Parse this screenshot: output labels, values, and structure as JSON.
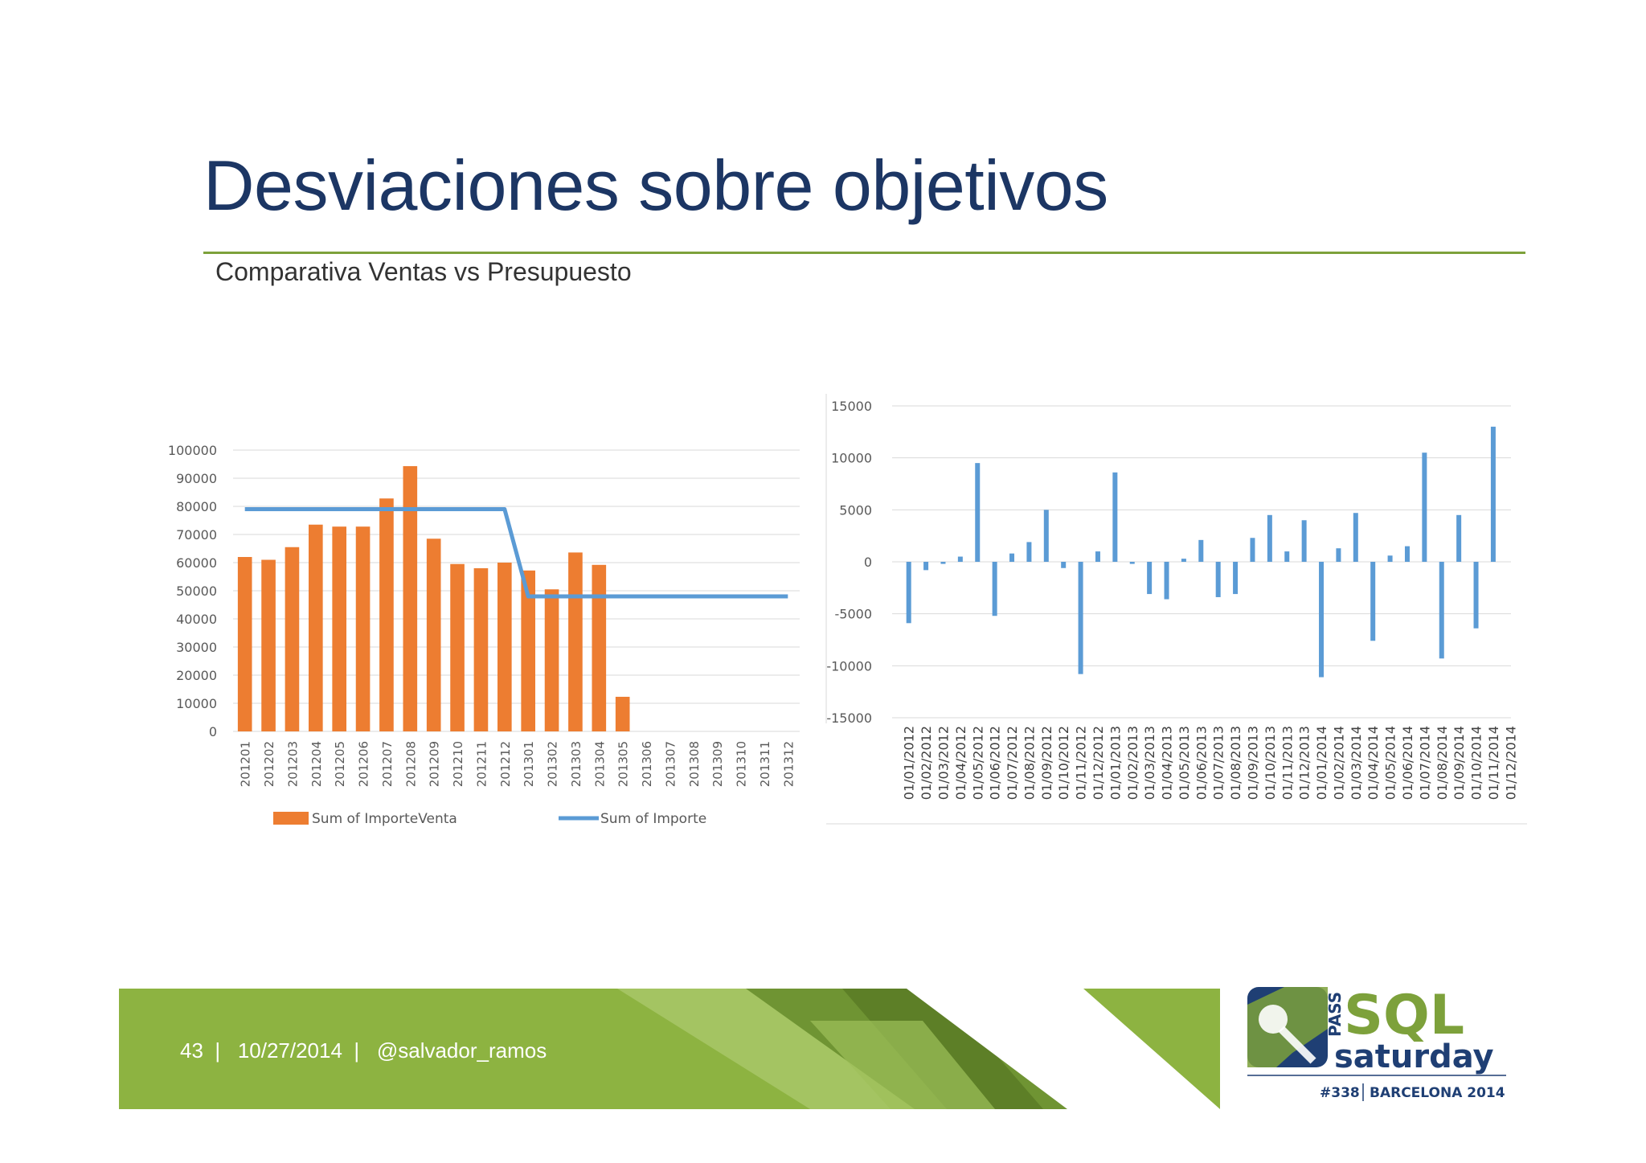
{
  "slide": {
    "title": "Desviaciones sobre objetivos",
    "subtitle": "Comparativa Ventas vs Presupuesto",
    "footer": {
      "page": "43",
      "date": "10/27/2014",
      "handle": "@salvador_ramos",
      "separator": "|"
    },
    "logo": {
      "pass": "PASS",
      "sql": "SQL",
      "saturday": "saturday",
      "event_number": "#338",
      "event_place": "BARCELONA 2014"
    },
    "colors": {
      "title": "#1c3664",
      "rule": "#7da13b",
      "footer_green": "#8db341",
      "bar_orange": "#ed7d31",
      "line_blue": "#5b9bd5"
    }
  },
  "chart_data": [
    {
      "type": "bar",
      "categories": [
        "201201",
        "201202",
        "201203",
        "201204",
        "201205",
        "201206",
        "201207",
        "201208",
        "201209",
        "201210",
        "201211",
        "201212",
        "201301",
        "201302",
        "201303",
        "201304",
        "201305",
        "201306",
        "201307",
        "201308",
        "201309",
        "201310",
        "201311",
        "201312"
      ],
      "series": [
        {
          "name": "Sum of ImporteVenta",
          "type": "bar",
          "color": "#ed7d31",
          "values": [
            62000,
            61000,
            65500,
            73500,
            72800,
            72800,
            82800,
            94300,
            68500,
            59500,
            58000,
            60000,
            57200,
            50500,
            63600,
            59200,
            12300,
            null,
            null,
            null,
            null,
            null,
            null,
            null
          ]
        },
        {
          "name": "Sum of Importe",
          "type": "line",
          "color": "#5b9bd5",
          "values": [
            79000,
            79000,
            79000,
            79000,
            79000,
            79000,
            79000,
            79000,
            79000,
            79000,
            79000,
            79000,
            48000,
            48000,
            48000,
            48000,
            48000,
            48000,
            48000,
            48000,
            48000,
            48000,
            48000,
            48000
          ]
        }
      ],
      "ylim": [
        0,
        100000
      ],
      "yticks": [
        "100000",
        "90000",
        "80000",
        "70000",
        "60000",
        "50000",
        "40000",
        "30000",
        "20000",
        "10000",
        "0"
      ],
      "grid": true,
      "legend": "bottom"
    },
    {
      "type": "bar",
      "categories": [
        "01/01/2012",
        "01/02/2012",
        "01/03/2012",
        "01/04/2012",
        "01/05/2012",
        "01/06/2012",
        "01/07/2012",
        "01/08/2012",
        "01/09/2012",
        "01/10/2012",
        "01/11/2012",
        "01/12/2012",
        "01/01/2013",
        "01/02/2013",
        "01/03/2013",
        "01/04/2013",
        "01/05/2013",
        "01/06/2013",
        "01/07/2013",
        "01/08/2013",
        "01/09/2013",
        "01/10/2013",
        "01/11/2013",
        "01/12/2013",
        "01/01/2014",
        "01/02/2014",
        "01/03/2014",
        "01/04/2014",
        "01/05/2014",
        "01/06/2014",
        "01/07/2014",
        "01/08/2014",
        "01/09/2014",
        "01/10/2014",
        "01/11/2014",
        "01/12/2014"
      ],
      "series": [
        {
          "color": "#5b9bd5",
          "values": [
            -5900,
            -800,
            -200,
            500,
            9500,
            -5200,
            800,
            1900,
            5000,
            -600,
            -10800,
            1000,
            8600,
            -200,
            -3100,
            -3600,
            300,
            2100,
            -3400,
            -3100,
            2300,
            4500,
            1000,
            4000,
            -11100,
            1300,
            4700,
            -7600,
            600,
            1500,
            10500,
            -9300,
            4500,
            -6400,
            13000,
            0
          ]
        }
      ],
      "ylim": [
        -15000,
        15000
      ],
      "yticks": [
        "15000",
        "10000",
        "5000",
        "0",
        "-5000",
        "-10000",
        "-15000"
      ],
      "grid": true
    }
  ]
}
